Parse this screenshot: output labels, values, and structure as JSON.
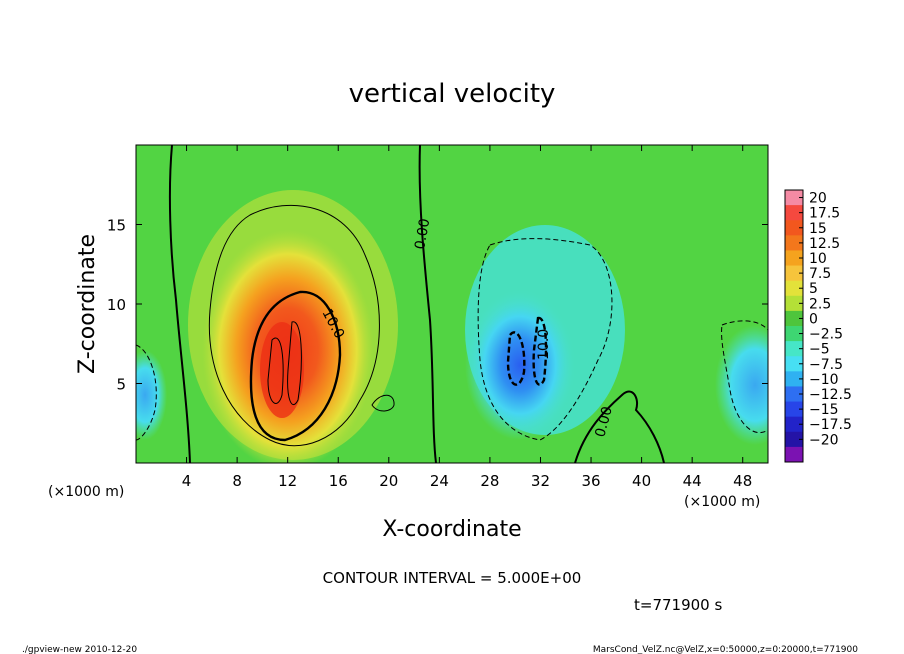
{
  "chart_data": {
    "type": "heatmap",
    "title": "vertical velocity",
    "xlabel": "X-coordinate",
    "ylabel": "Z-coordinate",
    "x_unit_label": "(×1000 m)",
    "xlim": [
      0,
      50
    ],
    "ylim": [
      0,
      20
    ],
    "x_ticks": [
      4,
      8,
      12,
      16,
      20,
      24,
      28,
      32,
      36,
      40,
      44,
      48
    ],
    "y_ticks": [
      5,
      10,
      15
    ],
    "colorbar": {
      "levels": [
        "20",
        "17.5",
        "15",
        "12.5",
        "10",
        "7.5",
        "5",
        "2.5",
        "0",
        "−2.5",
        "−5",
        "−7.5",
        "−10",
        "−12.5",
        "−15",
        "−17.5",
        "−20"
      ],
      "colors": [
        "#f58aa4",
        "#f5493f",
        "#f2571e",
        "#f3771c",
        "#f5a31e",
        "#f6c43c",
        "#e3e23a",
        "#b4e037",
        "#4ec53c",
        "#3ed672",
        "#46e6c7",
        "#47dff3",
        "#2fb1f1",
        "#2e6ff2",
        "#2745e8",
        "#2223c9",
        "#2413a6",
        "#7b12b2"
      ]
    },
    "features": [
      {
        "kind": "updraft",
        "x_center": 12,
        "z_center": 6,
        "peak": 15
      },
      {
        "kind": "downdraft",
        "x_center": 31,
        "z_center": 6,
        "peak": -12.5
      }
    ],
    "contour_labels": [
      "10.0",
      "0.00",
      "10.0",
      "0.00"
    ],
    "contour_interval": "CONTOUR INTERVAL = 5.000E+00",
    "time_label": "t=771900 s",
    "footer_left": "./gpview-new  2010-12-20",
    "footer_right": "MarsCond_VelZ.nc@VelZ,x=0:50000,z=0:20000,t=771900"
  }
}
